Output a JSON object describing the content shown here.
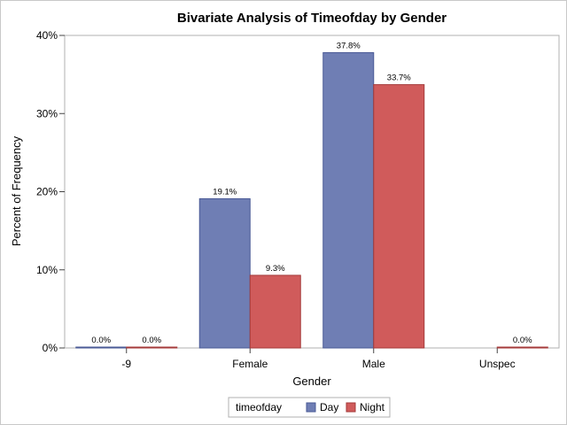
{
  "chart_data": {
    "type": "bar",
    "title": "Bivariate Analysis of Timeofday by Gender",
    "xlabel": "Gender",
    "ylabel": "Percent of Frequency",
    "categories": [
      "-9",
      "Female",
      "Male",
      "Unspec"
    ],
    "series": [
      {
        "name": "Day",
        "color": "#6f7eb4",
        "edge": "#4a5a96",
        "values": [
          0.0,
          19.1,
          37.8,
          null
        ],
        "labels": [
          "0.0%",
          "19.1%",
          "37.8%",
          ""
        ]
      },
      {
        "name": "Night",
        "color": "#d05b5b",
        "edge": "#a43a3a",
        "values": [
          0.0,
          9.3,
          33.7,
          0.0
        ],
        "labels": [
          "0.0%",
          "9.3%",
          "33.7%",
          "0.0%"
        ]
      }
    ],
    "ylim": [
      0,
      40
    ],
    "yticks": [
      0,
      10,
      20,
      30,
      40
    ],
    "ytick_labels": [
      "0%",
      "10%",
      "20%",
      "30%",
      "40%"
    ],
    "grid": false,
    "legend": {
      "title": "timeofday",
      "placement": "bottom-center"
    }
  }
}
